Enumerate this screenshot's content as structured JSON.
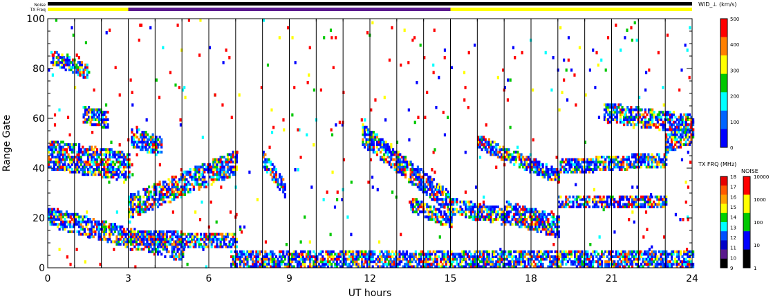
{
  "strip_labels": {
    "noise": "Noise",
    "tx_freq": "TX Freq"
  },
  "chart_data": {
    "type": "heatmap",
    "xlabel": "UT hours",
    "ylabel": "Range Gate",
    "xlim": [
      0,
      24
    ],
    "ylim": [
      0,
      100
    ],
    "x_ticks": [
      "0",
      "3",
      "6",
      "9",
      "12",
      "15",
      "18",
      "21",
      "24"
    ],
    "y_ticks": [
      "0",
      "20",
      "40",
      "60",
      "80",
      "100"
    ],
    "scan_boundaries_ut": [
      1,
      2,
      3,
      4,
      5,
      6,
      7,
      8,
      9,
      10,
      11,
      12,
      13,
      14,
      15,
      16,
      17,
      18,
      19,
      20,
      21,
      22,
      23
    ],
    "noise_strip": {
      "color": "#000000"
    },
    "tx_freq_strip": [
      {
        "start": 0,
        "end": 3,
        "color": "#ffff00"
      },
      {
        "start": 3,
        "end": 15,
        "color": "#5b1a8e"
      },
      {
        "start": 15,
        "end": 24,
        "color": "#ffff00"
      }
    ],
    "echo_bands": [
      {
        "t0": 0,
        "g0": 45,
        "t1": 3,
        "g1": 40,
        "width": 10
      },
      {
        "t0": 0,
        "g0": 20,
        "t1": 5,
        "g1": 6,
        "width": 6
      },
      {
        "t0": 3,
        "g0": 24,
        "t1": 7,
        "g1": 42,
        "width": 8
      },
      {
        "t0": 3,
        "g0": 12,
        "t1": 7,
        "g1": 10,
        "width": 4
      },
      {
        "t0": 8,
        "g0": 43,
        "t1": 8.8,
        "g1": 31,
        "width": 6
      },
      {
        "t0": 11.7,
        "g0": 53,
        "t1": 15,
        "g1": 25,
        "width": 7
      },
      {
        "t0": 13.5,
        "g0": 25,
        "t1": 15,
        "g1": 18,
        "width": 4
      },
      {
        "t0": 15,
        "g0": 24,
        "t1": 17,
        "g1": 20,
        "width": 5
      },
      {
        "t0": 17,
        "g0": 22,
        "t1": 19,
        "g1": 16,
        "width": 7
      },
      {
        "t0": 19,
        "g0": 26,
        "t1": 23,
        "g1": 26,
        "width": 4
      },
      {
        "t0": 16,
        "g0": 50,
        "t1": 19,
        "g1": 36,
        "width": 4
      },
      {
        "t0": 19,
        "g0": 40,
        "t1": 23,
        "g1": 43,
        "width": 4
      },
      {
        "t0": 20.7,
        "g0": 62,
        "t1": 24,
        "g1": 57,
        "width": 6
      },
      {
        "t0": 23,
        "g0": 50,
        "t1": 24,
        "g1": 54,
        "width": 7
      },
      {
        "t0": 6.8,
        "g0": 3,
        "t1": 24,
        "g1": 3,
        "width": 5
      },
      {
        "t0": 1.3,
        "g0": 61,
        "t1": 2.2,
        "g1": 59,
        "width": 5
      },
      {
        "t0": 0.1,
        "g0": 84,
        "t1": 1.5,
        "g1": 78,
        "width": 4
      },
      {
        "t0": 3.1,
        "g0": 52,
        "t1": 4.2,
        "g1": 48,
        "width": 6
      }
    ],
    "colorbars": [
      {
        "title": "WID_⊥ (km/s)",
        "labels": [
          "500",
          "400",
          "300",
          "200",
          "100",
          "0"
        ],
        "colors": [
          "#ff0000",
          "#ff8000",
          "#ffff00",
          "#00c800",
          "#00ffff",
          "#0064ff",
          "#0000ff"
        ]
      },
      {
        "title": "TX FRQ (MHz)",
        "labels": [
          "18",
          "17",
          "16",
          "15",
          "14",
          "13",
          "12",
          "11",
          "10",
          "9"
        ],
        "colors": [
          "#e60000",
          "#ff5a00",
          "#ffa000",
          "#ffff00",
          "#00d200",
          "#00ffff",
          "#0050ff",
          "#0000c8",
          "#5b1a8e",
          "#000000"
        ]
      },
      {
        "title": "NOISE",
        "labels": [
          "10000",
          "1000",
          "100",
          "10",
          "1"
        ],
        "colors": [
          "#ff0000",
          "#ffff00",
          "#00c800",
          "#0000ff",
          "#000000"
        ]
      }
    ]
  }
}
